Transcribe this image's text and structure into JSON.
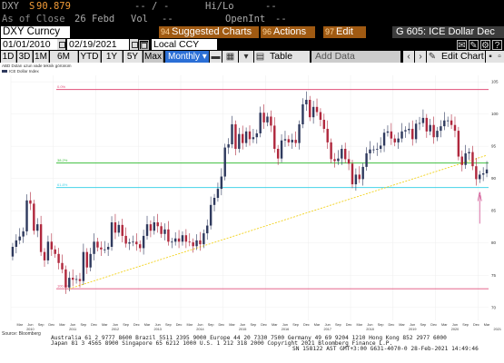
{
  "header": {
    "ticker": "DXY",
    "price_prefix": "S",
    "price": "90.879",
    "change_dashes": "-- /",
    "change_dash2": "-",
    "hi_lo_label": "Hi/Lo",
    "row1_dash": "--",
    "as_of_label": "As of Close",
    "as_of_date": "26 Febd",
    "vol_label": "Vol",
    "vol_value": "--",
    "openint_label": "OpenInt",
    "openint_value": "--"
  },
  "toolbar": {
    "security": "DXY Curncy",
    "suggested_num": "94",
    "suggested_label": "Suggested Charts",
    "actions_num": "96",
    "actions_label": "Actions",
    "edit_num": "97",
    "edit_label": "Edit",
    "window_title": "G 605: ICE Dollar Dec",
    "start_date": "01/01/2010",
    "end_date": "02/19/2021",
    "currency": "Local CCY",
    "periods": [
      "1D",
      "3D",
      "1M",
      "6M",
      "YTD",
      "1Y",
      "5Y",
      "Max"
    ],
    "frequency": "Monthly",
    "table_label": "Table",
    "add_data_label": "Add Data",
    "edit_chart_label": "Edit Chart"
  },
  "chart_data": {
    "type": "candlestick",
    "frequency": "monthly",
    "title": "ABD Doları uzun vade teknik görünüm",
    "legend": "ICE Dollar Index",
    "source": "Source: Bloomberg",
    "up_color": "#2f3a5e",
    "down_color": "#b0283d",
    "ylim": [
      68,
      106
    ],
    "y_ticks": [
      70,
      75,
      80,
      85,
      90,
      95,
      100,
      105
    ],
    "x_range": [
      "2010-01",
      "2021-03"
    ],
    "x_year_labels": [
      "2010",
      "2011",
      "2012",
      "2013",
      "2014",
      "2015",
      "2016",
      "2017",
      "2018",
      "2019",
      "2020",
      "2021"
    ],
    "x_month_labels": [
      "Mar",
      "Jun",
      "Sep",
      "Dec"
    ],
    "closes": [
      79.4,
      80.4,
      81.0,
      81.8,
      86.6,
      86.1,
      81.9,
      82.9,
      78.6,
      77.3,
      80.2,
      79.0,
      78.3,
      76.9,
      75.9,
      73.1,
      74.6,
      74.3,
      74.4,
      74.1,
      78.6,
      76.2,
      78.3,
      80.2,
      79.3,
      79.0,
      79.0,
      79.4,
      83.2,
      81.6,
      82.8,
      81.1,
      79.9,
      80.1,
      80.2,
      79.8,
      79.2,
      81.1,
      82.9,
      81.9,
      83.2,
      82.6,
      81.4,
      82.1,
      80.2,
      80.2,
      80.7,
      80.2,
      81.2,
      80.2,
      80.1,
      79.5,
      80.4,
      79.8,
      81.5,
      82.7,
      85.9,
      87.0,
      88.4,
      90.3,
      94.8,
      95.3,
      98.4,
      94.6,
      96.9,
      95.5,
      97.3,
      96.1,
      96.4,
      97.0,
      100.2,
      98.7,
      99.6,
      98.2,
      94.6,
      93.1,
      95.9,
      96.1,
      95.6,
      96.0,
      95.5,
      98.4,
      101.5,
      102.2,
      99.5,
      101.1,
      100.3,
      99.1,
      97.7,
      95.6,
      93.0,
      92.7,
      93.1,
      94.6,
      93.0,
      92.3,
      89.1,
      90.6,
      89.9,
      91.8,
      93.9,
      94.5,
      94.5,
      94.6,
      95.1,
      97.1,
      97.3,
      96.2,
      95.6,
      96.2,
      97.3,
      97.5,
      97.7,
      96.1,
      98.5,
      98.6,
      99.4,
      97.3,
      98.3,
      96.4,
      97.4,
      98.1,
      99.0,
      99.0,
      98.3,
      97.4,
      93.4,
      92.1,
      93.9,
      94.1,
      91.9,
      89.9,
      90.6,
      90.8,
      91.4
    ],
    "annotations": [
      {
        "label": "0.0%",
        "value": 103.8,
        "color": "#e0507a"
      },
      {
        "label": "38.2%",
        "value": 92.4,
        "color": "#3fbf3f"
      },
      {
        "label": "61.8%",
        "value": 88.6,
        "color": "#44d3e8"
      },
      {
        "label": "100.0%",
        "value": 72.9,
        "color": "#e0507a"
      }
    ],
    "trendline": {
      "from": [
        "2011-05",
        72.9
      ],
      "to": [
        "2021-03",
        93.6
      ],
      "color": "#f2d21c"
    },
    "arrow_at": "2021-01"
  },
  "footer": {
    "line1": "Australia 61 2 9777 8600  Brazil 5511 2395 9000  Europe 44 20 7330 7500  Germany 49 69 9204 1210  Hong Kong 852 2977 6000",
    "line2": "Japan 81 3 4565 8900           Singapore 65 6212 1000           U.S. 1 212 318 2000            Copyright 2021 Bloomberg Finance L.P.",
    "line3": "SN 158122 AST  GMT+3:00 G631-4070-0 28-Feb-2021 14:49:46"
  }
}
